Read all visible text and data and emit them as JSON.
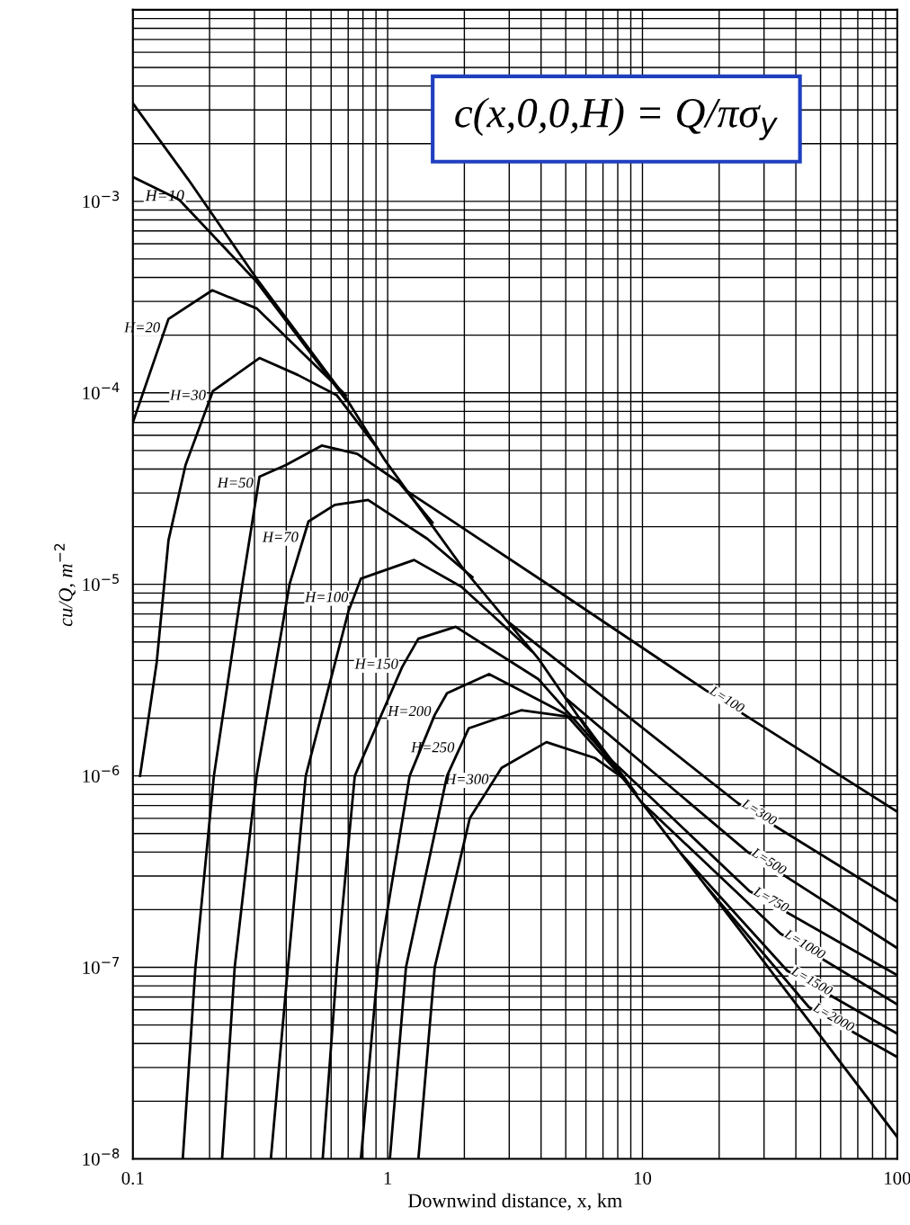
{
  "chart_data": {
    "type": "line",
    "log": "xy",
    "grid": true,
    "marker": "none",
    "line_style": "solid",
    "xlabel": "Downwind distance, x, km",
    "ylabel": "cu/Q, m$^{−2}$",
    "xlim": [
      0.1,
      100
    ],
    "ylim": [
      1e-08,
      0.01
    ],
    "xticks": [
      0.1,
      1,
      10,
      100
    ],
    "yticks": [
      {
        "value": 1e-08,
        "label": "10$^{−8}$"
      },
      {
        "value": 1e-07,
        "label": "10$^{−7}$"
      },
      {
        "value": 1e-06,
        "label": "10$^{−6}$"
      },
      {
        "value": 1e-05,
        "label": "10$^{−5}$"
      },
      {
        "value": 0.0001,
        "label": "10$^{−4}$"
      },
      {
        "value": 0.001,
        "label": "10$^{−3}$"
      }
    ],
    "annotations": [
      "c(x,0,0,H) = Q/πσ$_{y}$"
    ],
    "series": [
      {
        "color": "#000000",
        "x": [
          0.1,
          0.165,
          0.306,
          0.686,
          0.97,
          1.95,
          3.9,
          6.85,
          26,
          100
        ],
        "values": [
          0.00325,
          0.0013,
          0.000395,
          9.4e-05,
          4.5e-05,
          1.24e-05,
          4.1e-06,
          1.38e-06,
          1.37e-07,
          1.3e-08
        ]
      },
      {
        "name": "H=10",
        "color": "#000000",
        "x": [
          0.1,
          0.152,
          0.306,
          0.686
        ],
        "values": [
          0.00134,
          0.00102,
          0.00038,
          9.2e-05
        ]
      },
      {
        "name": "H=20",
        "color": "#000000",
        "x": [
          0.1,
          0.138,
          0.205,
          0.306,
          0.686
        ],
        "values": [
          7e-05,
          0.000243,
          0.000343,
          0.000276,
          9.7e-05
        ]
      },
      {
        "name": "H=30",
        "color": "#000000",
        "x": [
          0.1067,
          0.124,
          0.138,
          0.161,
          0.206,
          0.314,
          0.444,
          0.632,
          0.916
        ],
        "values": [
          1e-06,
          3.9e-06,
          1.7e-05,
          4.2e-05,
          0.000102,
          0.000152,
          0.000124,
          9.7e-05,
          5.1e-05
        ]
      },
      {
        "name": "H=50",
        "color": "#000000",
        "x": [
          0.157,
          0.176,
          0.208,
          0.269,
          0.314,
          0.399,
          0.551,
          0.76,
          1.11,
          1.5
        ],
        "values": [
          1e-08,
          1e-07,
          1e-06,
          1e-05,
          3.65e-05,
          4.2e-05,
          5.3e-05,
          4.8e-05,
          3.4e-05,
          2.1e-05
        ]
      },
      {
        "name": "H=70",
        "color": "#000000",
        "x": [
          0.224,
          0.251,
          0.306,
          0.412,
          0.489,
          0.62,
          0.838,
          1.43,
          2.15
        ],
        "values": [
          1e-08,
          1e-07,
          1e-06,
          1e-05,
          2.13e-05,
          2.6e-05,
          2.76e-05,
          1.73e-05,
          1.09e-05
        ]
      },
      {
        "name": "H=100",
        "color": "#000000",
        "x": [
          0.348,
          0.406,
          0.477,
          0.701,
          0.785,
          1.27,
          1.95,
          3.66
        ],
        "values": [
          1e-08,
          1e-07,
          1e-06,
          7.2e-06,
          1.07e-05,
          1.34e-05,
          9.7e-06,
          4.5e-06
        ]
      },
      {
        "name": "H=150",
        "color": "#000000",
        "x": [
          0.556,
          0.632,
          0.743,
          1.14,
          1.32,
          1.85,
          3.9,
          6.85
        ],
        "values": [
          1e-08,
          1e-07,
          1e-06,
          3.7e-06,
          5.2e-06,
          6e-06,
          3.2e-06,
          1.38e-06
        ]
      },
      {
        "name": "H=200",
        "color": "#000000",
        "x": [
          0.785,
          0.916,
          1.22,
          1.53,
          1.71,
          2.5,
          5,
          8.5
        ],
        "values": [
          1e-08,
          1e-07,
          1e-06,
          2.08e-06,
          2.7e-06,
          3.4e-06,
          2.1e-06,
          9.5e-07
        ]
      },
      {
        "name": "H=250",
        "color": "#000000",
        "x": [
          1.02,
          1.18,
          1.71,
          2.08,
          3.34,
          5.7,
          9.5
        ],
        "values": [
          1e-08,
          1e-07,
          1e-06,
          1.77e-06,
          2.2e-06,
          2e-06,
          8e-07
        ]
      },
      {
        "name": "H=300",
        "color": "#000000",
        "x": [
          1.32,
          1.53,
          2.1,
          2.8,
          4.2,
          6.5,
          8.5
        ],
        "values": [
          1e-08,
          1e-07,
          6e-07,
          1.1e-06,
          1.5e-06,
          1.24e-06,
          9.6e-07
        ]
      },
      {
        "name": "L=100",
        "color": "#000000",
        "x": [
          1.2,
          4.4,
          17.7,
          100
        ],
        "values": [
          3.05e-05,
          9.7e-06,
          2.8e-06,
          6.5e-07
        ]
      },
      {
        "name": "L=300",
        "color": "#000000",
        "x": [
          3,
          23.7,
          100
        ],
        "values": [
          6.3e-06,
          7.2e-07,
          2.2e-07
        ]
      },
      {
        "name": "L=500",
        "color": "#000000",
        "x": [
          5,
          25.9,
          100
        ],
        "values": [
          2.54e-06,
          4e-07,
          1.26e-07
        ]
      },
      {
        "name": "L=750",
        "color": "#000000",
        "x": [
          7,
          26.3,
          100
        ],
        "values": [
          1.33e-06,
          2.5e-07,
          9.1e-08
        ]
      },
      {
        "name": "L=1000",
        "color": "#000000",
        "x": [
          10,
          34.8,
          100
        ],
        "values": [
          7.2e-07,
          1.5e-07,
          6.4e-08
        ]
      },
      {
        "name": "L=1500",
        "color": "#000000",
        "x": [
          14,
          37,
          100
        ],
        "values": [
          4e-07,
          9.6e-08,
          4.5e-08
        ]
      },
      {
        "name": "L=2000",
        "color": "#000000",
        "x": [
          18,
          45,
          100
        ],
        "values": [
          2.6e-07,
          6.2e-08,
          3.4e-08
        ]
      }
    ]
  }
}
